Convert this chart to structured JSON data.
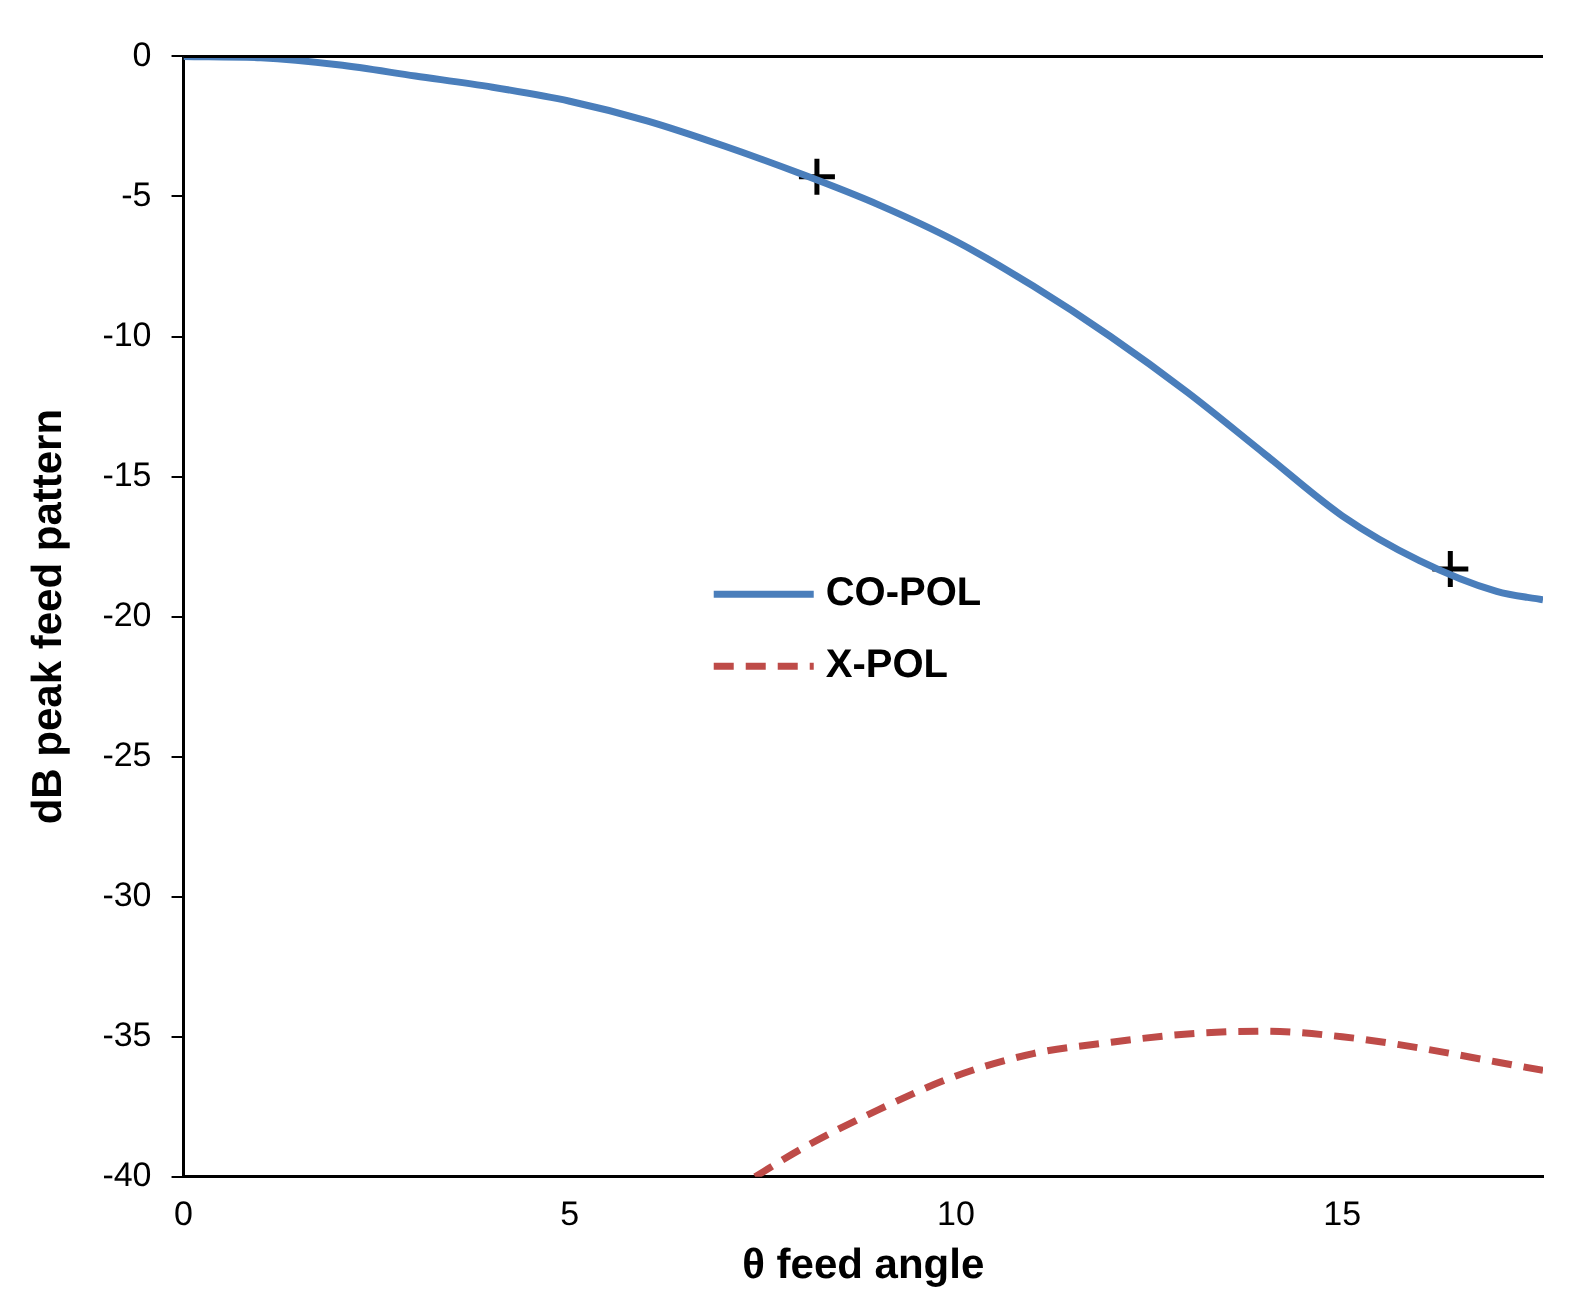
{
  "chart_data": {
    "type": "line",
    "xlabel": "θ feed angle",
    "ylabel": "dB peak feed pattern",
    "xlim": [
      0,
      17.6
    ],
    "xticks": [
      0,
      5,
      10,
      15
    ],
    "ylim": [
      -40,
      0
    ],
    "yticks": [
      -40,
      -35,
      -30,
      -25,
      -20,
      -15,
      -10,
      -5,
      0
    ],
    "grid": false,
    "legend": "right",
    "line_style": "solid",
    "marker": "none",
    "series": [
      {
        "name": "CO-POL",
        "color": "#4a7ebb",
        "x": [
          0,
          1,
          2,
          3,
          4,
          5,
          6,
          7,
          8,
          9,
          10,
          11,
          12,
          13,
          14,
          15,
          16,
          17,
          17.6
        ],
        "values": [
          0,
          -0.05,
          -0.3,
          -0.7,
          -1.1,
          -1.6,
          -2.3,
          -3.2,
          -4.2,
          -5.3,
          -6.6,
          -8.2,
          -10,
          -12,
          -14.2,
          -16.4,
          -18,
          -19.1,
          -19.4
        ]
      },
      {
        "name": "X-POL",
        "color": "#be4b48",
        "line_style": "dashed",
        "x": [
          7.4,
          8,
          9,
          10,
          11,
          12,
          13,
          14,
          15,
          16,
          17,
          17.6
        ],
        "values": [
          -40,
          -39,
          -37.6,
          -36.4,
          -35.6,
          -35.2,
          -34.9,
          -34.8,
          -35,
          -35.4,
          -35.9,
          -36.2
        ]
      },
      {
        "type": "scatter",
        "color": "#000000",
        "marker": "cross",
        "x": [
          8.2,
          16.4
        ],
        "values": [
          -4.3,
          -18.3
        ]
      }
    ]
  }
}
